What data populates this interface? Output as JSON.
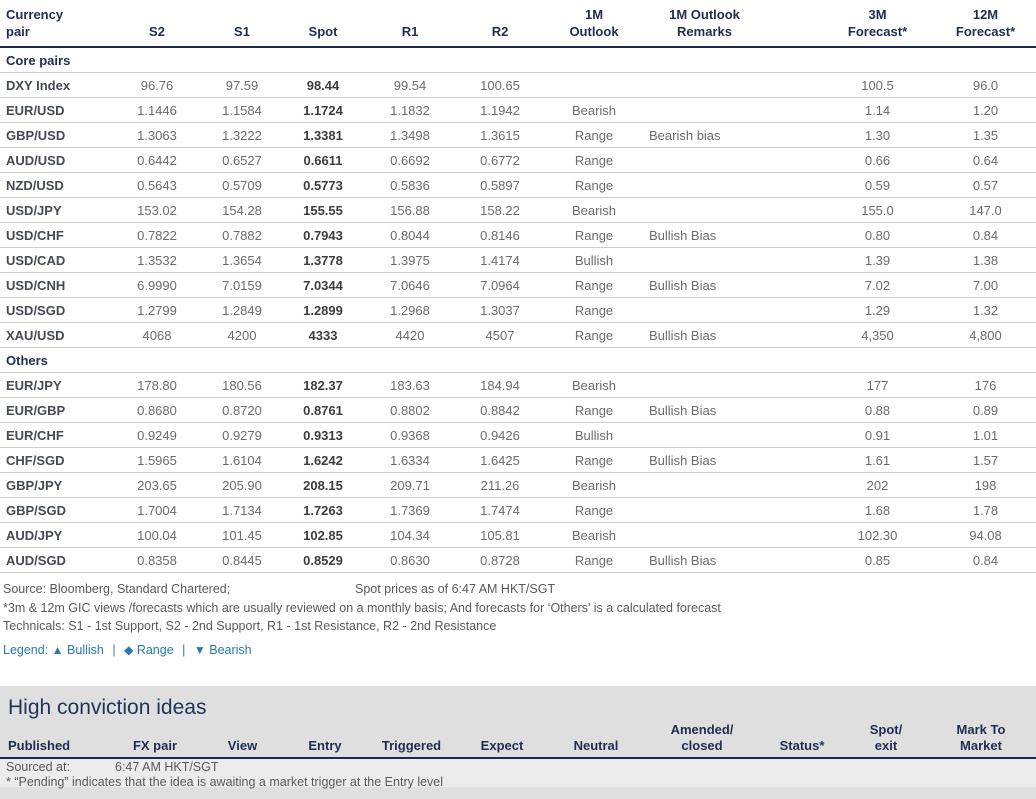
{
  "colors": {
    "header_navy": "#1E2D50",
    "bearish_red": "#F40000",
    "range_amber": "#F5A31B",
    "bullish_teal": "#00A7B4",
    "legend_blue": "#2779AE",
    "panel_gray": "#DFDFDF",
    "value_gray": "#6B6B6B"
  },
  "fx_table": {
    "header_cells": [
      "Currency\npair",
      "S2",
      "S1",
      "Spot",
      "R1",
      "R2",
      "1M\nOutlook",
      "1M Outlook\nRemarks",
      "3M\nForecast*",
      "12M\nForecast*"
    ],
    "sections": [
      {
        "label": "Core pairs",
        "rows": [
          {
            "pair": "DXY Index",
            "s2": "96.76",
            "s1": "97.59",
            "spot": "98.44",
            "r1": "99.54",
            "r2": "100.65",
            "outlook": "",
            "remarks": "",
            "f3m": "100.5",
            "f12m": "96.0"
          },
          {
            "pair": "EUR/USD",
            "s2": "1.1446",
            "s1": "1.1584",
            "spot": "1.1724",
            "r1": "1.1832",
            "r2": "1.1942",
            "outlook": "Bearish",
            "remarks": "",
            "f3m": "1.14",
            "f12m": "1.20"
          },
          {
            "pair": "GBP/USD",
            "s2": "1.3063",
            "s1": "1.3222",
            "spot": "1.3381",
            "r1": "1.3498",
            "r2": "1.3615",
            "outlook": "Range",
            "remarks": "Bearish bias",
            "f3m": "1.30",
            "f12m": "1.35"
          },
          {
            "pair": "AUD/USD",
            "s2": "0.6442",
            "s1": "0.6527",
            "spot": "0.6611",
            "r1": "0.6692",
            "r2": "0.6772",
            "outlook": "Range",
            "remarks": "",
            "f3m": "0.66",
            "f12m": "0.64"
          },
          {
            "pair": "NZD/USD",
            "s2": "0.5643",
            "s1": "0.5709",
            "spot": "0.5773",
            "r1": "0.5836",
            "r2": "0.5897",
            "outlook": "Range",
            "remarks": "",
            "f3m": "0.59",
            "f12m": "0.57"
          },
          {
            "pair": "USD/JPY",
            "s2": "153.02",
            "s1": "154.28",
            "spot": "155.55",
            "r1": "156.88",
            "r2": "158.22",
            "outlook": "Bearish",
            "remarks": "",
            "f3m": "155.0",
            "f12m": "147.0"
          },
          {
            "pair": "USD/CHF",
            "s2": "0.7822",
            "s1": "0.7882",
            "spot": "0.7943",
            "r1": "0.8044",
            "r2": "0.8146",
            "outlook": "Range",
            "remarks": "Bullish Bias",
            "f3m": "0.80",
            "f12m": "0.84"
          },
          {
            "pair": "USD/CAD",
            "s2": "1.3532",
            "s1": "1.3654",
            "spot": "1.3778",
            "r1": "1.3975",
            "r2": "1.4174",
            "outlook": "Bullish",
            "remarks": "",
            "f3m": "1.39",
            "f12m": "1.38"
          },
          {
            "pair": "USD/CNH",
            "s2": "6.9990",
            "s1": "7.0159",
            "spot": "7.0344",
            "r1": "7.0646",
            "r2": "7.0964",
            "outlook": "Range",
            "remarks": "Bullish Bias",
            "f3m": "7.02",
            "f12m": "7.00"
          },
          {
            "pair": "USD/SGD",
            "s2": "1.2799",
            "s1": "1.2849",
            "spot": "1.2899",
            "r1": "1.2968",
            "r2": "1.3037",
            "outlook": "Range",
            "remarks": "",
            "f3m": "1.29",
            "f12m": "1.32"
          },
          {
            "pair": "XAU/USD",
            "s2": "4068",
            "s1": "4200",
            "spot": "4333",
            "r1": "4420",
            "r2": "4507",
            "outlook": "Range",
            "remarks": "Bullish Bias",
            "f3m": "4,350",
            "f12m": "4,800"
          }
        ]
      },
      {
        "label": "Others",
        "rows": [
          {
            "pair": "EUR/JPY",
            "s2": "178.80",
            "s1": "180.56",
            "spot": "182.37",
            "r1": "183.63",
            "r2": "184.94",
            "outlook": "Bearish",
            "remarks": "",
            "f3m": "177",
            "f12m": "176"
          },
          {
            "pair": "EUR/GBP",
            "s2": "0.8680",
            "s1": "0.8720",
            "spot": "0.8761",
            "r1": "0.8802",
            "r2": "0.8842",
            "outlook": "Range",
            "remarks": "Bullish Bias",
            "f3m": "0.88",
            "f12m": "0.89"
          },
          {
            "pair": "EUR/CHF",
            "s2": "0.9249",
            "s1": "0.9279",
            "spot": "0.9313",
            "r1": "0.9368",
            "r2": "0.9426",
            "outlook": "Bullish",
            "remarks": "",
            "f3m": "0.91",
            "f12m": "1.01"
          },
          {
            "pair": "CHF/SGD",
            "s2": "1.5965",
            "s1": "1.6104",
            "spot": "1.6242",
            "r1": "1.6334",
            "r2": "1.6425",
            "outlook": "Range",
            "remarks": "Bullish Bias",
            "f3m": "1.61",
            "f12m": "1.57"
          },
          {
            "pair": "GBP/JPY",
            "s2": "203.65",
            "s1": "205.90",
            "spot": "208.15",
            "r1": "209.71",
            "r2": "211.26",
            "outlook": "Bearish",
            "remarks": "",
            "f3m": "202",
            "f12m": "198"
          },
          {
            "pair": "GBP/SGD",
            "s2": "1.7004",
            "s1": "1.7134",
            "spot": "1.7263",
            "r1": "1.7369",
            "r2": "1.7474",
            "outlook": "Range",
            "remarks": "",
            "f3m": "1.68",
            "f12m": "1.78"
          },
          {
            "pair": "AUD/JPY",
            "s2": "100.04",
            "s1": "101.45",
            "spot": "102.85",
            "r1": "104.34",
            "r2": "105.81",
            "outlook": "Bearish",
            "remarks": "",
            "f3m": "102.30",
            "f12m": "94.08"
          },
          {
            "pair": "AUD/SGD",
            "s2": "0.8358",
            "s1": "0.8445",
            "spot": "0.8529",
            "r1": "0.8630",
            "r2": "0.8728",
            "outlook": "Range",
            "remarks": "Bullish Bias",
            "f3m": "0.85",
            "f12m": "0.84"
          }
        ]
      }
    ]
  },
  "footer": {
    "source_left": "Source: Bloomberg, Standard Chartered;",
    "source_right": "Spot prices as of 6:47 AM HKT/SGT",
    "note_forecast": "*3m & 12m GIC views /forecasts which are usually reviewed on a monthly basis; And forecasts for ‘Others’ is a calculated forecast",
    "note_technicals": "Technicals: S1 - 1st Support, S2 - 2nd Support, R1 - 1st Resistance, R2 - 2nd Resistance",
    "legend": {
      "prefix": "Legend:",
      "items": [
        {
          "icon": "▲",
          "label": "Bullish"
        },
        {
          "icon": "◆",
          "label": "Range"
        },
        {
          "icon": "▼",
          "label": "Bearish"
        }
      ],
      "separator": "|"
    }
  },
  "high_conviction": {
    "title": "High conviction ideas",
    "header_cells": [
      "Published",
      "FX pair",
      "View",
      "Entry",
      "Triggered",
      "Expect",
      "Neutral",
      "Amended/\nclosed",
      "Status*",
      "Spot/\nexit",
      "Mark To\nMarket"
    ],
    "sourced_label": "Sourced at:",
    "sourced_value": "6:47 AM HKT/SGT",
    "footnote": "* “Pending” indicates that the idea is awaiting a market trigger at the Entry level"
  }
}
